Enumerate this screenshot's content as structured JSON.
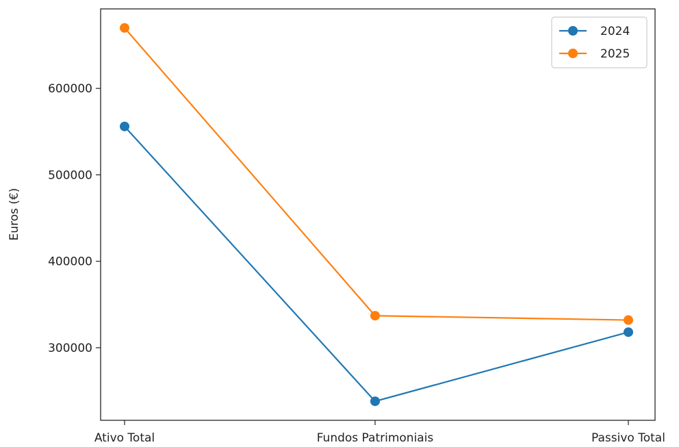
{
  "chart_data": {
    "type": "line",
    "title": "",
    "xlabel": "",
    "ylabel": "Euros (€)",
    "categories": [
      "Ativo Total",
      "Fundos Patrimoniais",
      "Passivo Total"
    ],
    "series": [
      {
        "name": "2024",
        "values": [
          556000,
          238000,
          318000
        ],
        "color": "#1f77b4"
      },
      {
        "name": "2025",
        "values": [
          670000,
          337000,
          332000
        ],
        "color": "#ff7f0e"
      }
    ],
    "yticks": [
      300000,
      400000,
      500000,
      600000
    ],
    "ylim": [
      216000,
      692000
    ],
    "grid": false,
    "legend_position": "top-right"
  }
}
